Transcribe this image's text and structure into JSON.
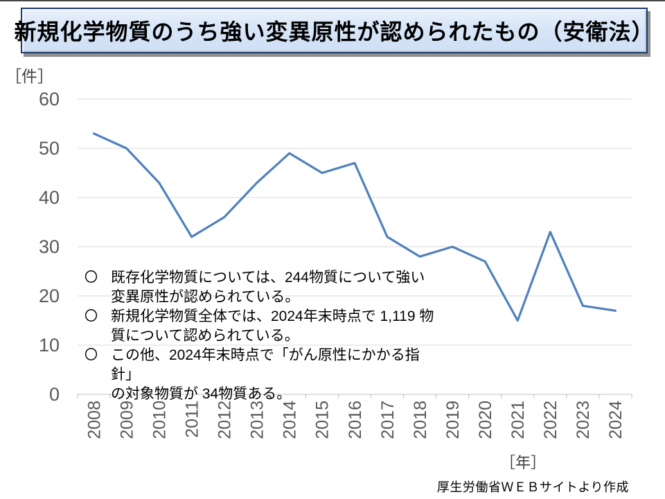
{
  "header": {
    "title": "新規化学物質のうち強い変異原性が認められたもの（安衛法）"
  },
  "chart_data": {
    "type": "line",
    "categories": [
      "2008",
      "2009",
      "2010",
      "2011",
      "2012",
      "2013",
      "2014",
      "2015",
      "2016",
      "2017",
      "2018",
      "2019",
      "2020",
      "2021",
      "2022",
      "2023",
      "2024"
    ],
    "values": [
      53,
      50,
      43,
      32,
      36,
      43,
      49,
      45,
      47,
      32,
      28,
      30,
      27,
      15,
      33,
      18,
      17
    ],
    "title": "新規化学物質のうち強い変異原性が認められたもの（安衛法）",
    "xlabel": "［年］",
    "ylabel": "［件］",
    "ylim": [
      0,
      60
    ],
    "yticks": [
      0,
      10,
      20,
      30,
      40,
      50,
      60
    ],
    "grid": true,
    "legend_position": "none",
    "line_color": "#4F81BD",
    "gridline_color": "#D9D9D9",
    "axis_color": "#BFBFBF",
    "tick_label_color": "#595959"
  },
  "notes": {
    "items": [
      {
        "marker": "〇",
        "lines": [
          "既存化学物質については、244物質について強い",
          "変異原性が認められている。"
        ]
      },
      {
        "marker": "〇",
        "lines": [
          "新規化学物質全体では、2024年末時点で 1,119 物",
          "質について認められている。"
        ]
      },
      {
        "marker": "〇",
        "lines": [
          "この他、2024年末時点で「がん原性にかかる指針」",
          "の対象物質が 34物質ある。"
        ]
      }
    ]
  },
  "footer": {
    "source": "厚生労働省ＷＥＢサイトより作成"
  }
}
